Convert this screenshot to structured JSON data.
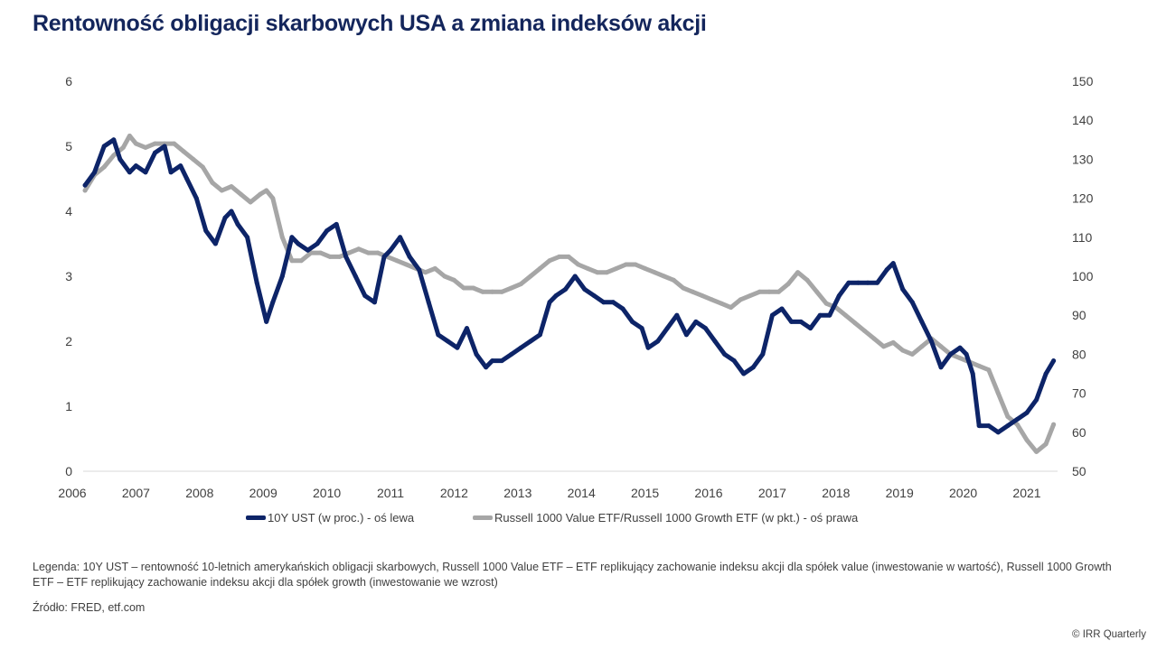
{
  "title": "Rentowność obligacji skarbowych USA a zmiana indeksów akcji",
  "legend": {
    "series1": "10Y UST (w proc.) - oś lewa",
    "series2": "Russell 1000 Value ETF/Russell 1000 Growth ETF (w pkt.) - oś prawa"
  },
  "note": "Legenda: 10Y UST – rentowność 10-letnich amerykańskich obligacji skarbowych, Russell 1000 Value ETF – ETF replikujący zachowanie indeksu akcji dla spółek value (inwestowanie w wartość), Russell 1000 Growth ETF – ETF replikujący zachowanie indeksu akcji dla spółek growth (inwestowanie we wzrost)",
  "source": "Źródło: FRED, etf.com",
  "copyright": "© IRR Quarterly",
  "colors": {
    "series1": "#0d2468",
    "series2": "#a6a6a6",
    "axis": "#d9d9d9",
    "title": "#14265c"
  },
  "chart_data": {
    "type": "line",
    "title": "Rentowność obligacji skarbowych USA a zmiana indeksów akcji",
    "xlabel": "",
    "ylabel_left": "10Y UST (w proc.)",
    "ylabel_right": "Russell 1000 Value ETF/Russell 1000 Growth ETF (w pkt.)",
    "xlim": [
      2006,
      2021.5
    ],
    "ylim_left": [
      0,
      6
    ],
    "ylim_right": [
      50,
      150
    ],
    "x_ticks": [
      "2006",
      "2007",
      "2008",
      "2009",
      "2010",
      "2011",
      "2012",
      "2013",
      "2014",
      "2015",
      "2016",
      "2017",
      "2018",
      "2019",
      "2020",
      "2021"
    ],
    "y_ticks_left": [
      "0",
      "1",
      "2",
      "3",
      "4",
      "5",
      "6"
    ],
    "y_ticks_right": [
      "50",
      "60",
      "70",
      "80",
      "90",
      "100",
      "110",
      "120",
      "130",
      "140",
      "150"
    ],
    "grid": false,
    "legend_position": "bottom",
    "series": [
      {
        "name": "10Y UST (w proc.) - oś lewa",
        "axis": "left",
        "x": [
          2006.2,
          2006.35,
          2006.5,
          2006.65,
          2006.75,
          2006.9,
          2007.0,
          2007.15,
          2007.3,
          2007.45,
          2007.55,
          2007.7,
          2007.8,
          2007.95,
          2008.1,
          2008.25,
          2008.4,
          2008.5,
          2008.6,
          2008.75,
          2008.9,
          2009.05,
          2009.15,
          2009.3,
          2009.45,
          2009.55,
          2009.7,
          2009.85,
          2010.0,
          2010.15,
          2010.3,
          2010.45,
          2010.6,
          2010.75,
          2010.9,
          2011.0,
          2011.15,
          2011.3,
          2011.45,
          2011.6,
          2011.75,
          2011.9,
          2012.05,
          2012.2,
          2012.35,
          2012.5,
          2012.6,
          2012.75,
          2012.9,
          2013.05,
          2013.2,
          2013.35,
          2013.5,
          2013.6,
          2013.75,
          2013.9,
          2014.05,
          2014.2,
          2014.35,
          2014.5,
          2014.65,
          2014.8,
          2014.95,
          2015.05,
          2015.2,
          2015.35,
          2015.5,
          2015.65,
          2015.8,
          2015.95,
          2016.1,
          2016.25,
          2016.4,
          2016.55,
          2016.7,
          2016.85,
          2017.0,
          2017.15,
          2017.3,
          2017.45,
          2017.6,
          2017.75,
          2017.9,
          2018.05,
          2018.2,
          2018.35,
          2018.5,
          2018.65,
          2018.8,
          2018.9,
          2019.05,
          2019.2,
          2019.35,
          2019.5,
          2019.65,
          2019.8,
          2019.95,
          2020.05,
          2020.15,
          2020.25,
          2020.4,
          2020.55,
          2020.7,
          2020.85,
          2021.0,
          2021.15,
          2021.3,
          2021.42
        ],
        "y": [
          4.4,
          4.6,
          5.0,
          5.1,
          4.8,
          4.6,
          4.7,
          4.6,
          4.9,
          5.0,
          4.6,
          4.7,
          4.5,
          4.2,
          3.7,
          3.5,
          3.9,
          4.0,
          3.8,
          3.6,
          2.9,
          2.3,
          2.6,
          3.0,
          3.6,
          3.5,
          3.4,
          3.5,
          3.7,
          3.8,
          3.3,
          3.0,
          2.7,
          2.6,
          3.3,
          3.4,
          3.6,
          3.3,
          3.1,
          2.6,
          2.1,
          2.0,
          1.9,
          2.2,
          1.8,
          1.6,
          1.7,
          1.7,
          1.8,
          1.9,
          2.0,
          2.1,
          2.6,
          2.7,
          2.8,
          3.0,
          2.8,
          2.7,
          2.6,
          2.6,
          2.5,
          2.3,
          2.2,
          1.9,
          2.0,
          2.2,
          2.4,
          2.1,
          2.3,
          2.2,
          2.0,
          1.8,
          1.7,
          1.5,
          1.6,
          1.8,
          2.4,
          2.5,
          2.3,
          2.3,
          2.2,
          2.4,
          2.4,
          2.7,
          2.9,
          2.9,
          2.9,
          2.9,
          3.1,
          3.2,
          2.8,
          2.6,
          2.3,
          2.0,
          1.6,
          1.8,
          1.9,
          1.8,
          1.5,
          0.7,
          0.7,
          0.6,
          0.7,
          0.8,
          0.9,
          1.1,
          1.5,
          1.7
        ]
      },
      {
        "name": "Russell 1000 Value ETF/Russell 1000 Growth ETF (w pkt.) - oś prawa",
        "axis": "right",
        "x": [
          2006.2,
          2006.35,
          2006.5,
          2006.65,
          2006.8,
          2006.9,
          2007.0,
          2007.15,
          2007.3,
          2007.45,
          2007.6,
          2007.75,
          2007.9,
          2008.05,
          2008.2,
          2008.35,
          2008.5,
          2008.65,
          2008.8,
          2008.95,
          2009.05,
          2009.15,
          2009.3,
          2009.45,
          2009.6,
          2009.75,
          2009.9,
          2010.05,
          2010.2,
          2010.35,
          2010.5,
          2010.65,
          2010.8,
          2010.95,
          2011.1,
          2011.25,
          2011.4,
          2011.55,
          2011.7,
          2011.85,
          2012.0,
          2012.15,
          2012.3,
          2012.45,
          2012.6,
          2012.75,
          2012.9,
          2013.05,
          2013.2,
          2013.35,
          2013.5,
          2013.65,
          2013.8,
          2013.95,
          2014.1,
          2014.25,
          2014.4,
          2014.55,
          2014.7,
          2014.85,
          2015.0,
          2015.15,
          2015.3,
          2015.45,
          2015.6,
          2015.75,
          2015.9,
          2016.05,
          2016.2,
          2016.35,
          2016.5,
          2016.65,
          2016.8,
          2016.95,
          2017.1,
          2017.25,
          2017.4,
          2017.55,
          2017.7,
          2017.85,
          2018.0,
          2018.15,
          2018.3,
          2018.45,
          2018.6,
          2018.75,
          2018.9,
          2019.05,
          2019.2,
          2019.35,
          2019.5,
          2019.65,
          2019.8,
          2019.95,
          2020.1,
          2020.25,
          2020.4,
          2020.55,
          2020.7,
          2020.85,
          2021.0,
          2021.15,
          2021.3,
          2021.42
        ],
        "y": [
          122,
          126,
          128,
          131,
          133,
          136,
          134,
          133,
          134,
          134,
          134,
          132,
          130,
          128,
          124,
          122,
          123,
          121,
          119,
          121,
          122,
          120,
          110,
          104,
          104,
          106,
          106,
          105,
          105,
          106,
          107,
          106,
          106,
          105,
          104,
          103,
          102,
          101,
          102,
          100,
          99,
          97,
          97,
          96,
          96,
          96,
          97,
          98,
          100,
          102,
          104,
          105,
          105,
          103,
          102,
          101,
          101,
          102,
          103,
          103,
          102,
          101,
          100,
          99,
          97,
          96,
          95,
          94,
          93,
          92,
          94,
          95,
          96,
          96,
          96,
          98,
          101,
          99,
          96,
          93,
          92,
          90,
          88,
          86,
          84,
          82,
          83,
          81,
          80,
          82,
          84,
          82,
          80,
          79,
          78,
          77,
          76,
          70,
          64,
          62,
          58,
          55,
          57,
          62
        ]
      }
    ]
  }
}
